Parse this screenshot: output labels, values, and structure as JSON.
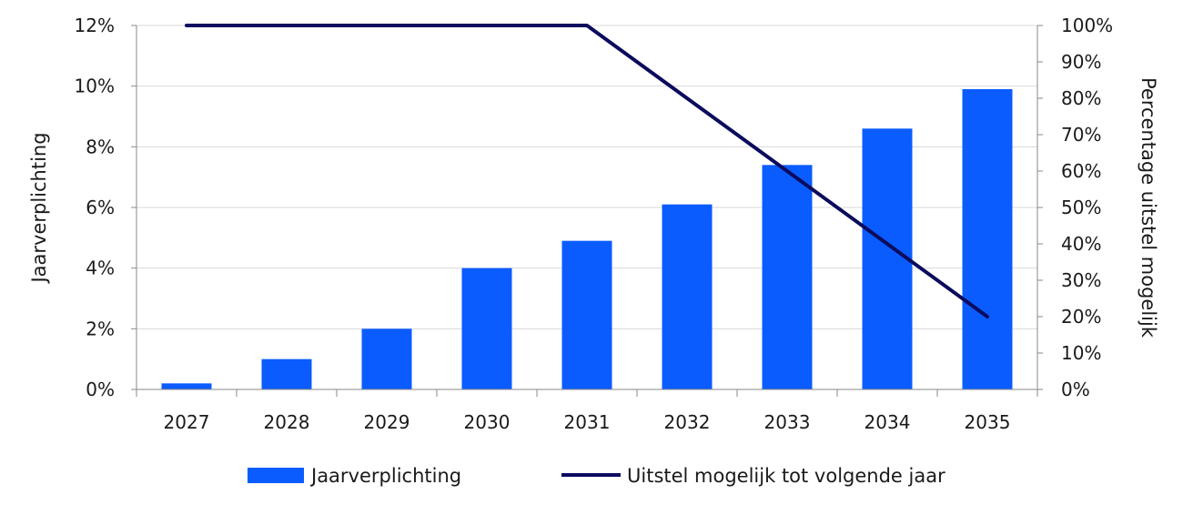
{
  "chart_data": {
    "type": "bar",
    "categories": [
      "2027",
      "2028",
      "2029",
      "2030",
      "2031",
      "2032",
      "2033",
      "2034",
      "2035"
    ],
    "series": [
      {
        "name": "Jaarverplichting",
        "type": "bar",
        "axis": "left",
        "color": "#0a5cff",
        "values": [
          0.2,
          1.0,
          2.0,
          4.0,
          4.9,
          6.1,
          7.4,
          8.6,
          9.9
        ]
      },
      {
        "name": "Uitstel mogelijk tot volgende jaar",
        "type": "line",
        "axis": "right",
        "color": "#0b0b5e",
        "values": [
          100,
          100,
          100,
          100,
          100,
          80,
          60,
          40,
          20
        ]
      }
    ],
    "ylabel": "Jaarverplichting",
    "ylabel_right": "Percentage uitstel mogelijk",
    "ylim": [
      0,
      12
    ],
    "ylim_right": [
      0,
      100
    ],
    "yticks": [
      "0%",
      "2%",
      "4%",
      "6%",
      "8%",
      "10%",
      "12%"
    ],
    "yticks_right": [
      "0%",
      "10%",
      "20%",
      "30%",
      "40%",
      "50%",
      "60%",
      "70%",
      "80%",
      "90%",
      "100%"
    ],
    "grid": true,
    "legend_position": "bottom"
  }
}
